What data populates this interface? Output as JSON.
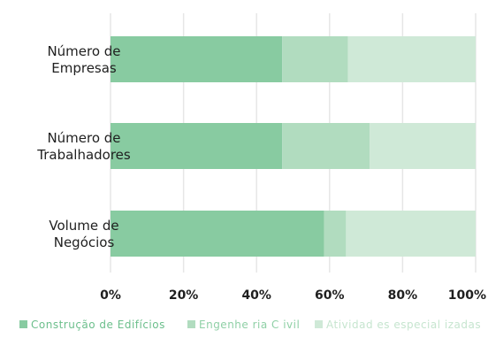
{
  "chart_data": {
    "type": "bar",
    "orientation": "horizontal",
    "stacked": true,
    "percent": true,
    "categories": [
      [
        "Número de",
        "Empresas"
      ],
      [
        "Número de",
        "Trabalhadores"
      ],
      [
        "Volume de",
        "Negócios"
      ]
    ],
    "series": [
      {
        "name": "Construção de   Edifícios",
        "values": [
          47,
          47,
          58.5
        ],
        "color": "#88cba1"
      },
      {
        "name": "Engenhe ria C ivil",
        "values": [
          18,
          24,
          6
        ],
        "color": "#b1dcbf"
      },
      {
        "name": "Atividad es especial izadas",
        "values": [
          35,
          29,
          35.5
        ],
        "color": "#cfe9d7"
      }
    ],
    "xlim": [
      0,
      100
    ],
    "xticks": [
      "0%",
      "20%",
      "40%",
      "60%",
      "80%",
      "100%"
    ],
    "xtick_values": [
      0,
      20,
      40,
      60,
      80,
      100
    ],
    "grid": true,
    "grid_color": "#e6e6e6",
    "legend_position": "bottom"
  }
}
